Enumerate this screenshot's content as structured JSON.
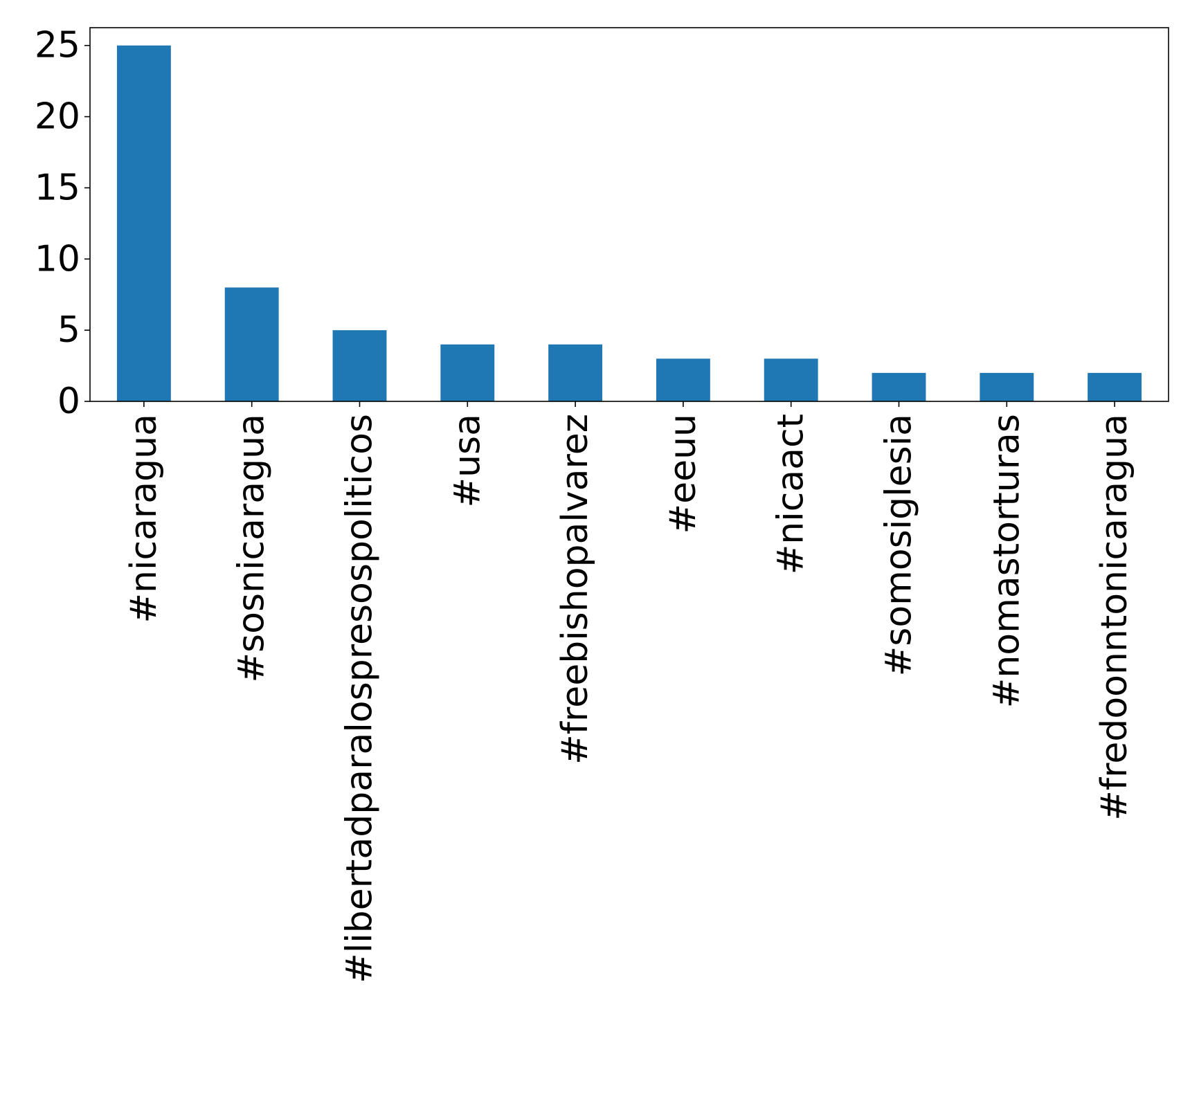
{
  "chart_data": {
    "type": "bar",
    "title": "",
    "xlabel": "",
    "ylabel": "",
    "categories": [
      "#nicaragua",
      "#sosnicaragua",
      "#libertadparalospresospoliticos",
      "#usa",
      "#freebishopalvarez",
      "#eeuu",
      "#nicaact",
      "#somosiglesia",
      "#nomastorturas",
      "#fredoonntonicaragua"
    ],
    "values": [
      25,
      8,
      5,
      4,
      4,
      3,
      3,
      2,
      2,
      2
    ],
    "ylim": [
      0,
      26.25
    ],
    "yticks": [
      0,
      5,
      10,
      15,
      20,
      25
    ],
    "ytick_labels": [
      "0",
      "5",
      "10",
      "15",
      "20",
      "25"
    ],
    "grid": false,
    "legend": "none",
    "colors": {
      "bar": "#1f77b4",
      "axis": "#000000",
      "background": "#ffffff"
    }
  }
}
